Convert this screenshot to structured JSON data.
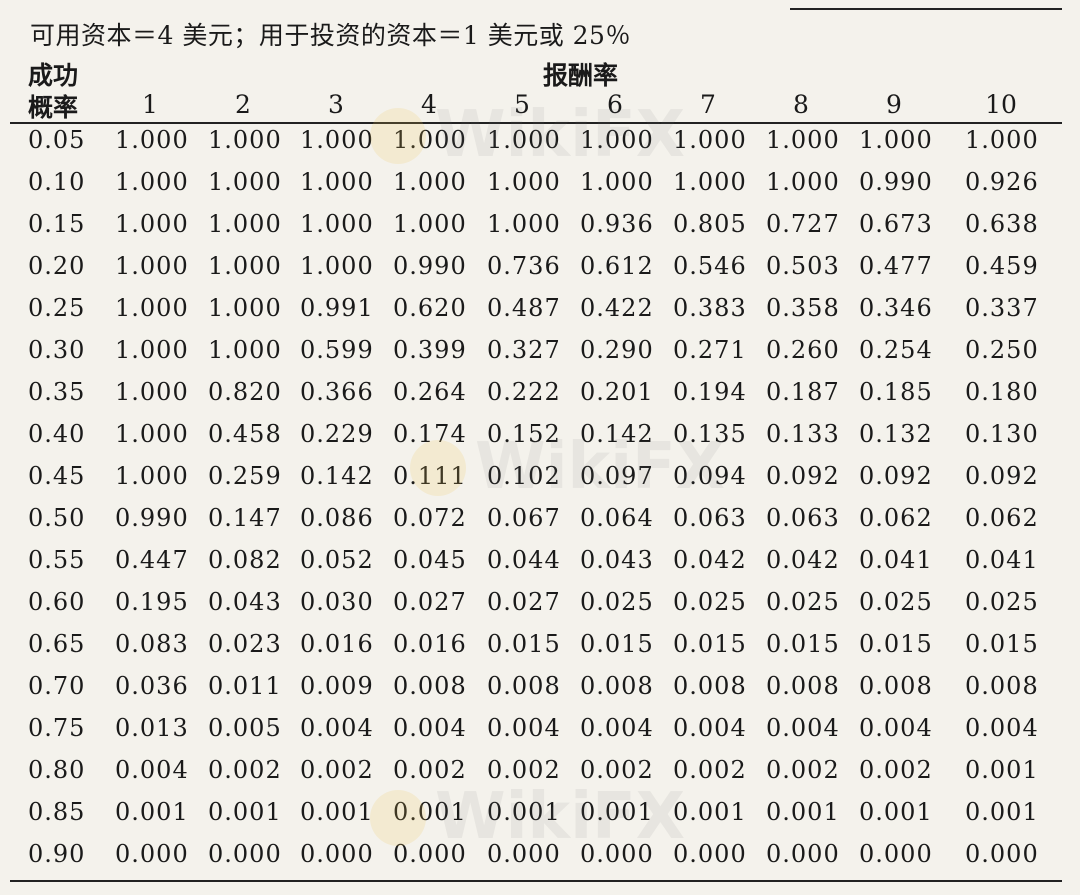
{
  "caption": "可用资本＝4 美元；用于投资的资本＝1 美元或 25％",
  "header": {
    "success_line1": "成功",
    "success_line2": "概率",
    "payoff": "报酬率",
    "columns": [
      "1",
      "2",
      "3",
      "4",
      "5",
      "6",
      "7",
      "8",
      "9",
      "10"
    ]
  },
  "rows": [
    {
      "p": "0.05",
      "v": [
        "1.000",
        "1.000",
        "1.000",
        "1.000",
        "1.000",
        "1.000",
        "1.000",
        "1.000",
        "1.000",
        "1.000"
      ]
    },
    {
      "p": "0.10",
      "v": [
        "1.000",
        "1.000",
        "1.000",
        "1.000",
        "1.000",
        "1.000",
        "1.000",
        "1.000",
        "0.990",
        "0.926"
      ]
    },
    {
      "p": "0.15",
      "v": [
        "1.000",
        "1.000",
        "1.000",
        "1.000",
        "1.000",
        "0.936",
        "0.805",
        "0.727",
        "0.673",
        "0.638"
      ]
    },
    {
      "p": "0.20",
      "v": [
        "1.000",
        "1.000",
        "1.000",
        "0.990",
        "0.736",
        "0.612",
        "0.546",
        "0.503",
        "0.477",
        "0.459"
      ]
    },
    {
      "p": "0.25",
      "v": [
        "1.000",
        "1.000",
        "0.991",
        "0.620",
        "0.487",
        "0.422",
        "0.383",
        "0.358",
        "0.346",
        "0.337"
      ]
    },
    {
      "p": "0.30",
      "v": [
        "1.000",
        "1.000",
        "0.599",
        "0.399",
        "0.327",
        "0.290",
        "0.271",
        "0.260",
        "0.254",
        "0.250"
      ]
    },
    {
      "p": "0.35",
      "v": [
        "1.000",
        "0.820",
        "0.366",
        "0.264",
        "0.222",
        "0.201",
        "0.194",
        "0.187",
        "0.185",
        "0.180"
      ]
    },
    {
      "p": "0.40",
      "v": [
        "1.000",
        "0.458",
        "0.229",
        "0.174",
        "0.152",
        "0.142",
        "0.135",
        "0.133",
        "0.132",
        "0.130"
      ]
    },
    {
      "p": "0.45",
      "v": [
        "1.000",
        "0.259",
        "0.142",
        "0.111",
        "0.102",
        "0.097",
        "0.094",
        "0.092",
        "0.092",
        "0.092"
      ]
    },
    {
      "p": "0.50",
      "v": [
        "0.990",
        "0.147",
        "0.086",
        "0.072",
        "0.067",
        "0.064",
        "0.063",
        "0.063",
        "0.062",
        "0.062"
      ]
    },
    {
      "p": "0.55",
      "v": [
        "0.447",
        "0.082",
        "0.052",
        "0.045",
        "0.044",
        "0.043",
        "0.042",
        "0.042",
        "0.041",
        "0.041"
      ]
    },
    {
      "p": "0.60",
      "v": [
        "0.195",
        "0.043",
        "0.030",
        "0.027",
        "0.027",
        "0.025",
        "0.025",
        "0.025",
        "0.025",
        "0.025"
      ]
    },
    {
      "p": "0.65",
      "v": [
        "0.083",
        "0.023",
        "0.016",
        "0.016",
        "0.015",
        "0.015",
        "0.015",
        "0.015",
        "0.015",
        "0.015"
      ]
    },
    {
      "p": "0.70",
      "v": [
        "0.036",
        "0.011",
        "0.009",
        "0.008",
        "0.008",
        "0.008",
        "0.008",
        "0.008",
        "0.008",
        "0.008"
      ]
    },
    {
      "p": "0.75",
      "v": [
        "0.013",
        "0.005",
        "0.004",
        "0.004",
        "0.004",
        "0.004",
        "0.004",
        "0.004",
        "0.004",
        "0.004"
      ]
    },
    {
      "p": "0.80",
      "v": [
        "0.004",
        "0.002",
        "0.002",
        "0.002",
        "0.002",
        "0.002",
        "0.002",
        "0.002",
        "0.002",
        "0.001"
      ]
    },
    {
      "p": "0.85",
      "v": [
        "0.001",
        "0.001",
        "0.001",
        "0.001",
        "0.001",
        "0.001",
        "0.001",
        "0.001",
        "0.001",
        "0.001"
      ]
    },
    {
      "p": "0.90",
      "v": [
        "0.000",
        "0.000",
        "0.000",
        "0.000",
        "0.000",
        "0.000",
        "0.000",
        "0.000",
        "0.000",
        "0.000"
      ]
    }
  ],
  "watermark": "WikiFX"
}
